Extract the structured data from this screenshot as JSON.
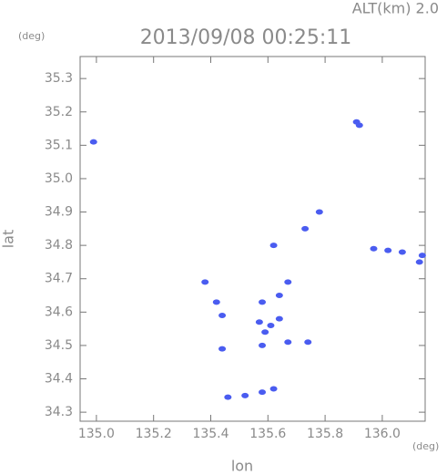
{
  "chart_data": {
    "type": "scatter",
    "title": "2013/09/08 00:25:11",
    "subtitle": "ALT(km) 2.0",
    "x_label": "lon",
    "y_label": "lat",
    "x_unit": "(deg)",
    "y_unit": "(deg)",
    "xlim": [
      134.943,
      136.15
    ],
    "ylim": [
      34.273,
      35.366
    ],
    "xticks": [
      {
        "value": 135,
        "label": "135.0"
      },
      135.2,
      135.4,
      135.6,
      135.8,
      {
        "value": 136,
        "label": "136.0"
      }
    ],
    "yticks": [
      34.3,
      34.4,
      34.5,
      34.6,
      34.7,
      34.8,
      34.9,
      {
        "value": 35,
        "label": "35.0"
      },
      35.1,
      35.2,
      35.3
    ],
    "series": [
      {
        "color": "#4a5cf0",
        "x": [
          134.99,
          135.91,
          135.92,
          135.78,
          135.62,
          135.73,
          135.97,
          136.02,
          136.07,
          136.14,
          136.13,
          135.38,
          135.67,
          135.42,
          135.44,
          135.58,
          135.64,
          135.57,
          135.59,
          135.61,
          135.58,
          135.64,
          135.67,
          135.74,
          135.44,
          135.46,
          135.52,
          135.58,
          135.62
        ],
        "y": [
          35.11,
          35.17,
          35.16,
          34.9,
          34.8,
          34.85,
          34.79,
          34.785,
          34.78,
          34.77,
          34.75,
          34.69,
          34.69,
          34.63,
          34.59,
          34.63,
          34.65,
          34.57,
          34.54,
          34.56,
          34.5,
          34.58,
          34.51,
          34.51,
          34.49,
          34.345,
          34.35,
          34.36,
          34.37
        ]
      }
    ]
  }
}
